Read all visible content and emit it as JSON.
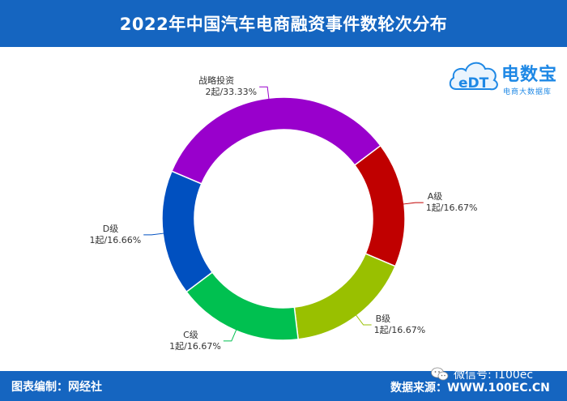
{
  "header": {
    "title": "2022年中国汽车电商融资事件数轮次分布"
  },
  "logo": {
    "brand": "电数宝",
    "tagline": "电商大数据库"
  },
  "footer": {
    "credit": "图表编制：网经社",
    "source": "数据来源：WWW.100EC.CN"
  },
  "watermark": {
    "text": "微信号: i100ec"
  },
  "chart_data": {
    "type": "pie",
    "donut": true,
    "slices": [
      {
        "name": "战略投资",
        "value_label": "2起/33.33%",
        "value": 2,
        "percent": 33.33,
        "color": "#9900cc"
      },
      {
        "name": "A级",
        "value_label": "1起/16.67%",
        "value": 1,
        "percent": 16.67,
        "color": "#c00000"
      },
      {
        "name": "B级",
        "value_label": "1起/16.67%",
        "value": 1,
        "percent": 16.67,
        "color": "#99c000"
      },
      {
        "name": "C级",
        "value_label": "1起/16.67%",
        "value": 1,
        "percent": 16.67,
        "color": "#00c050"
      },
      {
        "name": "D级",
        "value_label": "1起/16.66%",
        "value": 1,
        "percent": 16.66,
        "color": "#0050c0"
      }
    ]
  }
}
